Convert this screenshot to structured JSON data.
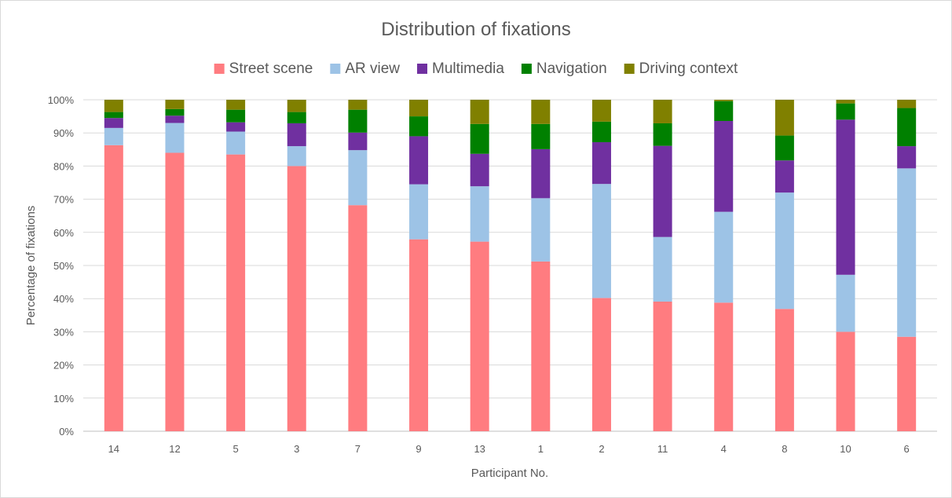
{
  "chart_data": {
    "type": "bar",
    "stacked": true,
    "percent_stacked": true,
    "title": "Distribution of fixations",
    "xlabel": "Participant No.",
    "ylabel": "Percentage of fixations",
    "ylim": [
      0,
      100
    ],
    "yticks": [
      "0%",
      "10%",
      "20%",
      "30%",
      "40%",
      "50%",
      "60%",
      "70%",
      "80%",
      "90%",
      "100%"
    ],
    "grid": true,
    "legend_position": "top",
    "categories": [
      "14",
      "12",
      "5",
      "3",
      "7",
      "9",
      "13",
      "1",
      "2",
      "11",
      "4",
      "8",
      "10",
      "6"
    ],
    "series": [
      {
        "name": "Street scene",
        "color": "#ff7c80",
        "values": [
          86.3,
          84.0,
          83.5,
          80.0,
          68.2,
          57.9,
          57.2,
          51.2,
          40.2,
          39.1,
          38.8,
          36.9,
          30.0,
          28.5
        ]
      },
      {
        "name": "AR view",
        "color": "#9dc3e6",
        "values": [
          5.2,
          9.0,
          6.9,
          6.0,
          16.6,
          16.6,
          16.7,
          19.1,
          34.4,
          19.5,
          27.4,
          35.1,
          17.2,
          50.8
        ]
      },
      {
        "name": "Multimedia",
        "color": "#7030a0",
        "values": [
          3.0,
          2.2,
          2.8,
          6.9,
          5.3,
          14.5,
          9.8,
          14.8,
          12.6,
          27.5,
          27.4,
          9.7,
          46.8,
          6.7
        ]
      },
      {
        "name": "Navigation",
        "color": "#008000",
        "values": [
          1.8,
          2.0,
          3.8,
          3.4,
          6.9,
          6.0,
          9.0,
          7.6,
          6.2,
          6.8,
          6.0,
          7.5,
          4.9,
          11.5
        ]
      },
      {
        "name": "Driving context",
        "color": "#808000",
        "values": [
          3.7,
          2.8,
          3.0,
          3.7,
          3.0,
          5.0,
          7.3,
          7.3,
          6.6,
          7.1,
          0.4,
          10.8,
          1.1,
          2.5
        ]
      }
    ]
  }
}
